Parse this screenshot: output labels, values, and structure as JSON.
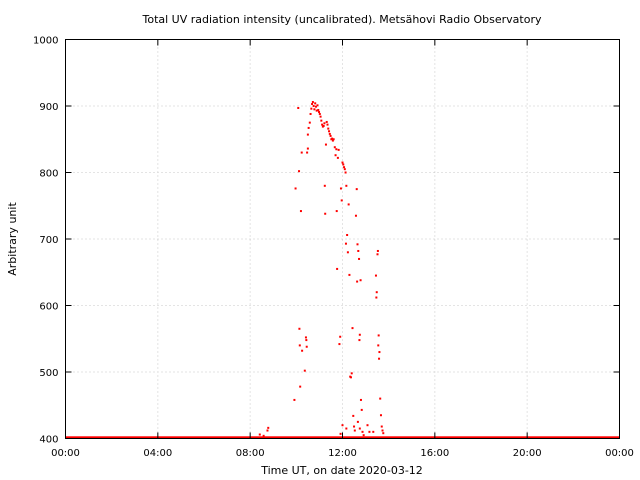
{
  "chart_data": {
    "type": "scatter",
    "title": "Total UV radiation intensity (uncalibrated). Metsähovi Radio Observatory",
    "xlabel": "Time UT, on date 2020-03-12",
    "ylabel": "Arbitrary unit",
    "xlim": [
      "00:00",
      "24:00"
    ],
    "ylim": [
      400,
      1000
    ],
    "xticks": [
      "00:00",
      "04:00",
      "08:00",
      "12:00",
      "16:00",
      "20:00",
      "00:00"
    ],
    "yticks": [
      "400",
      "500",
      "600",
      "700",
      "800",
      "900",
      "1000"
    ],
    "grid": true,
    "series": [
      {
        "color": "#ff0000",
        "points": [
          [
            "08:25",
            406
          ],
          [
            "08:35",
            404
          ],
          [
            "08:45",
            412
          ],
          [
            "08:47",
            416
          ],
          [
            "09:55",
            458
          ],
          [
            "09:58",
            776
          ],
          [
            "10:05",
            897
          ],
          [
            "10:07",
            802
          ],
          [
            "10:08",
            565
          ],
          [
            "10:09",
            540
          ],
          [
            "10:10",
            478
          ],
          [
            "10:12",
            742
          ],
          [
            "10:14",
            830
          ],
          [
            "10:15",
            532
          ],
          [
            "10:22",
            502
          ],
          [
            "10:25",
            552
          ],
          [
            "10:26",
            548
          ],
          [
            "10:27",
            538
          ],
          [
            "10:28",
            830
          ],
          [
            "10:30",
            836
          ],
          [
            "10:30",
            857
          ],
          [
            "10:32",
            867
          ],
          [
            "10:35",
            875
          ],
          [
            "10:37",
            888
          ],
          [
            "10:39",
            896
          ],
          [
            "10:41",
            903
          ],
          [
            "10:43",
            906
          ],
          [
            "10:45",
            900
          ],
          [
            "10:47",
            895
          ],
          [
            "10:49",
            904
          ],
          [
            "10:51",
            899
          ],
          [
            "10:53",
            893
          ],
          [
            "10:55",
            901
          ],
          [
            "10:57",
            894
          ],
          [
            "10:59",
            891
          ],
          [
            "11:01",
            888
          ],
          [
            "11:03",
            884
          ],
          [
            "11:05",
            878
          ],
          [
            "11:07",
            872
          ],
          [
            "11:09",
            869
          ],
          [
            "11:11",
            870
          ],
          [
            "11:13",
            874
          ],
          [
            "11:14",
            780
          ],
          [
            "11:15",
            738
          ],
          [
            "11:17",
            842
          ],
          [
            "11:19",
            876
          ],
          [
            "11:21",
            872
          ],
          [
            "11:23",
            866
          ],
          [
            "11:25",
            862
          ],
          [
            "11:27",
            858
          ],
          [
            "11:29",
            855
          ],
          [
            "11:31",
            850
          ],
          [
            "11:33",
            851
          ],
          [
            "11:35",
            848
          ],
          [
            "11:37",
            850
          ],
          [
            "11:40",
            838
          ],
          [
            "11:42",
            826
          ],
          [
            "11:44",
            835
          ],
          [
            "11:45",
            742
          ],
          [
            "11:46",
            655
          ],
          [
            "11:48",
            822
          ],
          [
            "11:50",
            834
          ],
          [
            "11:52",
            542
          ],
          [
            "11:54",
            553
          ],
          [
            "11:56",
            776
          ],
          [
            "11:58",
            758
          ],
          [
            "12:00",
            815
          ],
          [
            "12:02",
            812
          ],
          [
            "12:04",
            808
          ],
          [
            "12:06",
            805
          ],
          [
            "12:08",
            800
          ],
          [
            "12:09",
            693
          ],
          [
            "12:10",
            780
          ],
          [
            "12:12",
            706
          ],
          [
            "12:14",
            680
          ],
          [
            "12:16",
            752
          ],
          [
            "12:18",
            646
          ],
          [
            "12:20",
            493
          ],
          [
            "12:22",
            492
          ],
          [
            "12:24",
            498
          ],
          [
            "12:26",
            566
          ],
          [
            "12:28",
            434
          ],
          [
            "12:30",
            418
          ],
          [
            "12:32",
            412
          ],
          [
            "12:35",
            735
          ],
          [
            "12:37",
            775
          ],
          [
            "12:38",
            636
          ],
          [
            "12:39",
            692
          ],
          [
            "12:41",
            682
          ],
          [
            "12:43",
            670
          ],
          [
            "12:44",
            548
          ],
          [
            "12:45",
            556
          ],
          [
            "12:47",
            638
          ],
          [
            "12:48",
            458
          ],
          [
            "12:50",
            443
          ],
          [
            "12:52",
            410
          ],
          [
            "12:00",
            420
          ],
          [
            "12:10",
            415
          ],
          [
            "12:40",
            425
          ],
          [
            "12:45",
            415
          ],
          [
            "11:55",
            407
          ],
          [
            "12:55",
            405
          ],
          [
            "13:05",
            420
          ],
          [
            "13:10",
            410
          ],
          [
            "13:20",
            410
          ],
          [
            "13:27",
            645
          ],
          [
            "13:28",
            612
          ],
          [
            "13:29",
            620
          ],
          [
            "13:31",
            677
          ],
          [
            "13:32",
            682
          ],
          [
            "13:33",
            540
          ],
          [
            "13:34",
            555
          ],
          [
            "13:35",
            520
          ],
          [
            "13:36",
            530
          ],
          [
            "13:38",
            460
          ],
          [
            "13:40",
            435
          ],
          [
            "13:42",
            418
          ],
          [
            "13:44",
            412
          ],
          [
            "13:46",
            408
          ]
        ]
      }
    ]
  }
}
